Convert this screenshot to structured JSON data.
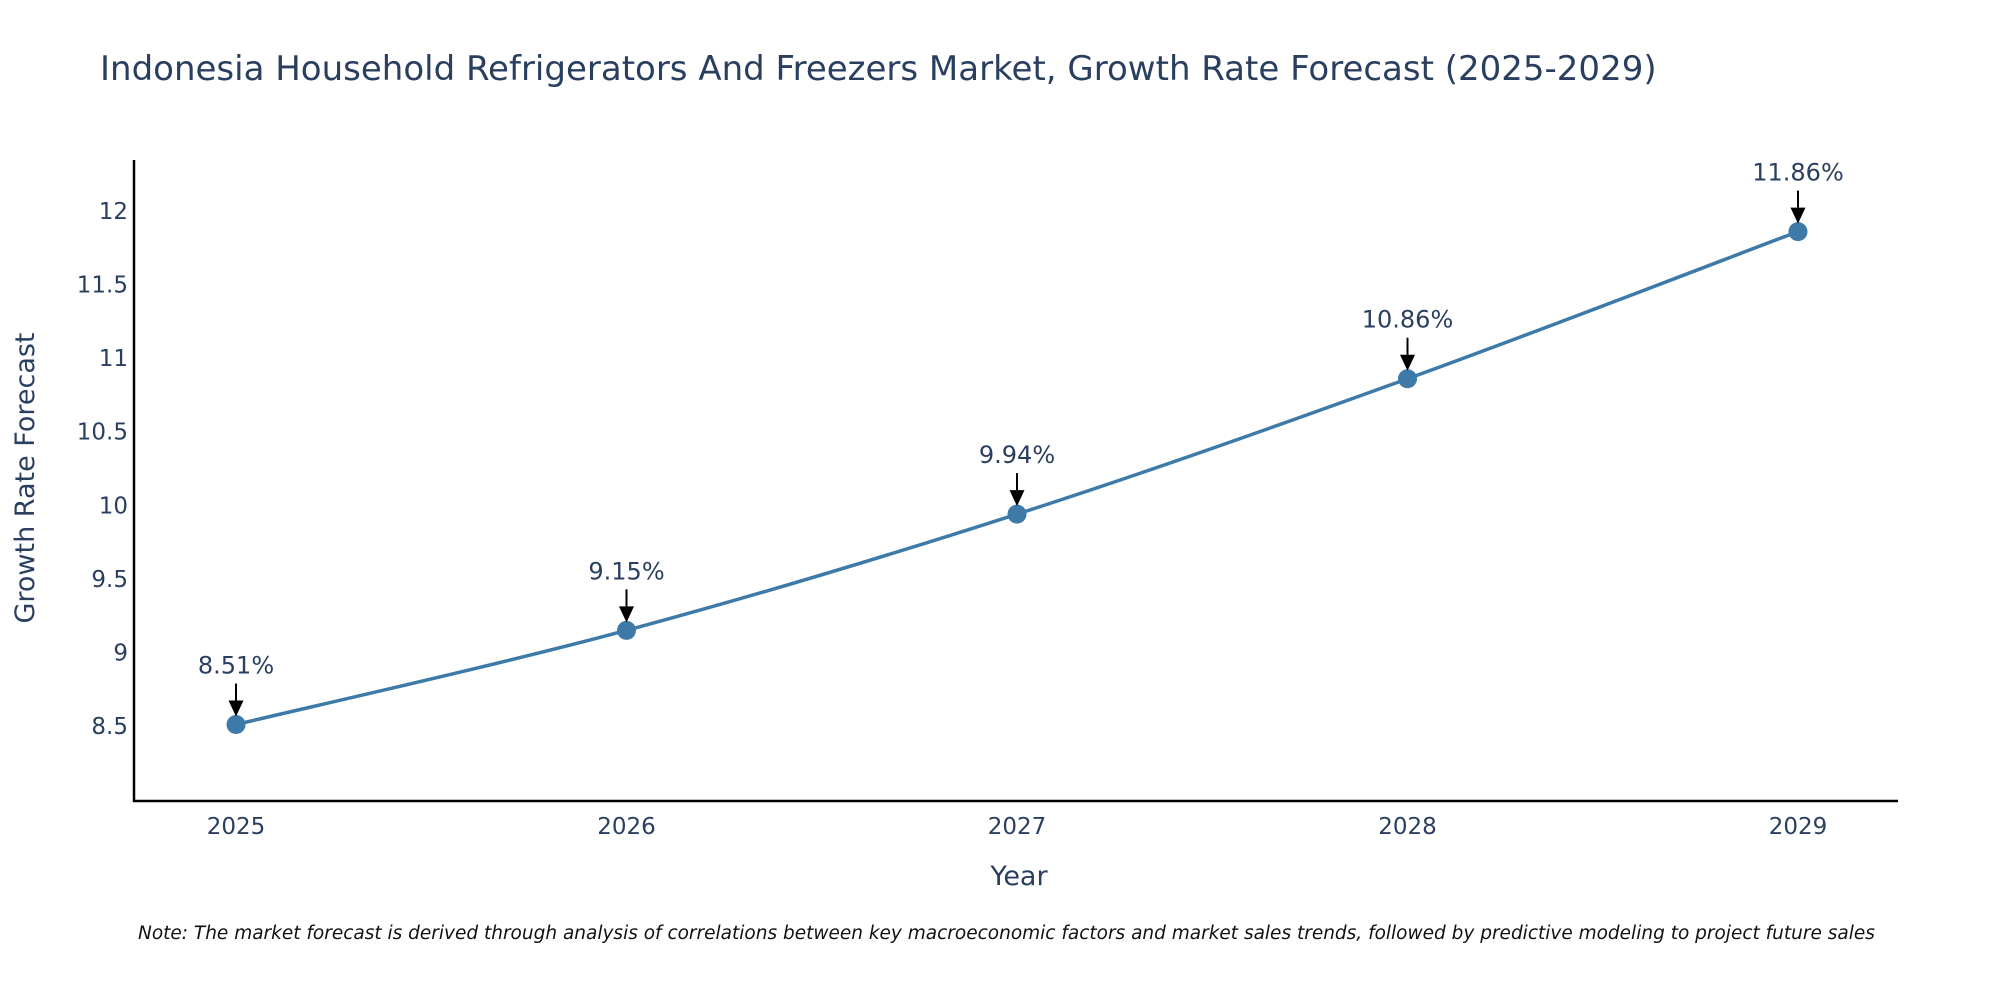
{
  "chart_data": {
    "type": "line",
    "title": "Indonesia Household Refrigerators And Freezers Market, Growth Rate Forecast (2025-2029)",
    "xlabel": "Year",
    "ylabel": "Growth Rate Forecast",
    "categories": [
      "2025",
      "2026",
      "2027",
      "2028",
      "2029"
    ],
    "series": [
      {
        "name": "Growth Rate Forecast",
        "values": [
          8.51,
          9.15,
          9.94,
          10.86,
          11.86
        ],
        "color": "#3d7aa8"
      }
    ],
    "data_labels": [
      "8.51%",
      "9.15%",
      "9.94%",
      "10.86%",
      "11.86%"
    ],
    "y_ticks": [
      "8.5",
      "9",
      "9.5",
      "10",
      "10.5",
      "11",
      "11.5",
      "12"
    ],
    "ylim": [
      8.0,
      12.35
    ],
    "grid": false,
    "legend": "none",
    "note": "Note: The market forecast is derived through analysis of correlations between key macroeconomic factors and market sales trends, followed by predictive modeling to project future sales"
  },
  "colors": {
    "line": "#3d7aa8",
    "marker": "#3d7aa8",
    "axis": "#000000",
    "text": "#2a3f5f",
    "arrow": "#000000"
  }
}
